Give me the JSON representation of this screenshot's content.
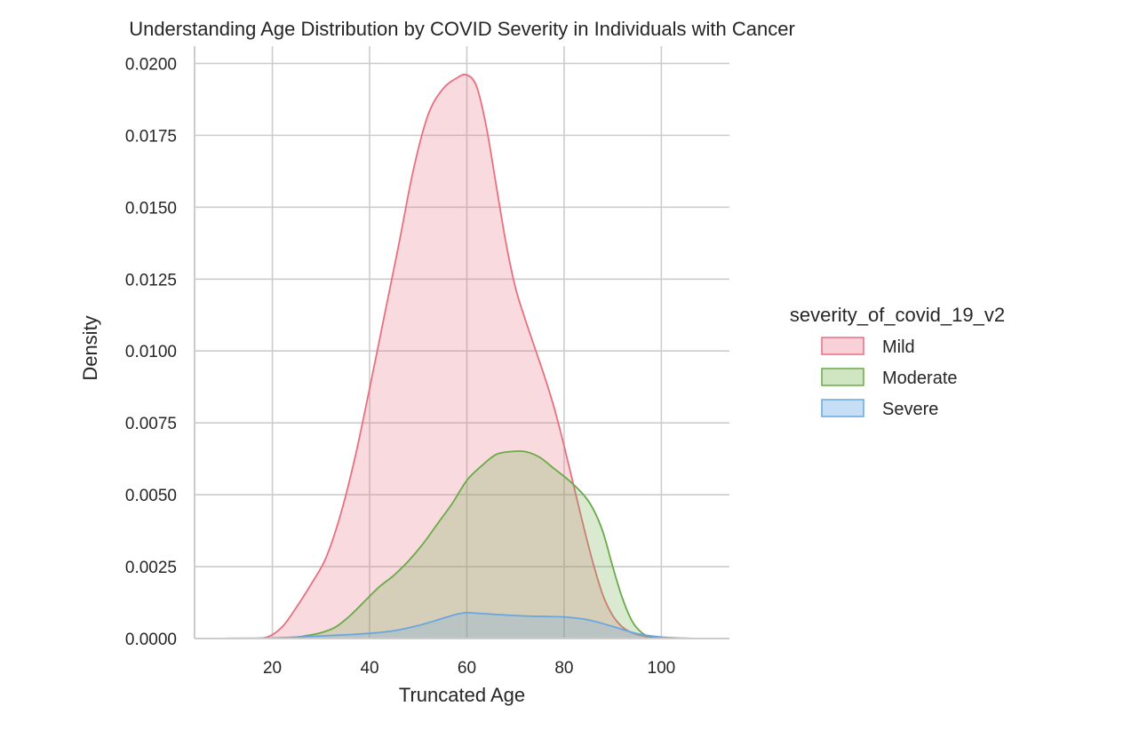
{
  "chart_data": {
    "type": "area",
    "title": "Understanding Age Distribution by COVID Severity in Individuals with Cancer",
    "xlabel": "Truncated Age",
    "ylabel": "Density",
    "xlim": [
      4,
      114
    ],
    "ylim": [
      0,
      0.0206
    ],
    "xticks": [
      20,
      40,
      60,
      80,
      100
    ],
    "xtick_labels": [
      "20",
      "40",
      "60",
      "80",
      "100"
    ],
    "yticks": [
      0,
      0.0025,
      0.005,
      0.0075,
      0.01,
      0.0125,
      0.015,
      0.0175,
      0.02
    ],
    "ytick_labels": [
      "0.0000",
      "0.0025",
      "0.0050",
      "0.0075",
      "0.0100",
      "0.0125",
      "0.0150",
      "0.0175",
      "0.0200"
    ],
    "grid": true,
    "legend": {
      "title": "severity_of_covid_19_v2",
      "position": "right"
    },
    "series": [
      {
        "name": "Mild",
        "color": "#e8707f",
        "fill": "#f7d0d8",
        "x": [
          5,
          12,
          16,
          19,
          22,
          25,
          28,
          31,
          34,
          37,
          40,
          43,
          46,
          49,
          52,
          55,
          58,
          60,
          62,
          64,
          66,
          68,
          70,
          72,
          74,
          76,
          78,
          80,
          82,
          84,
          86,
          88,
          90,
          92,
          94,
          96,
          98,
          100,
          105,
          110
        ],
        "y": [
          0,
          0,
          0,
          5e-05,
          0.0004,
          0.0011,
          0.0019,
          0.0028,
          0.0043,
          0.0063,
          0.0087,
          0.0112,
          0.0137,
          0.0163,
          0.0182,
          0.0191,
          0.0195,
          0.0196,
          0.0192,
          0.0178,
          0.0158,
          0.0138,
          0.0122,
          0.0111,
          0.0101,
          0.0091,
          0.008,
          0.0067,
          0.0053,
          0.0039,
          0.0026,
          0.0015,
          0.0008,
          0.0004,
          0.0002,
          0.0001,
          3e-05,
          0,
          0,
          0
        ]
      },
      {
        "name": "Moderate",
        "color": "#6aaa48",
        "fill": "#d0e6c2",
        "x": [
          5,
          20,
          24,
          27,
          30,
          33,
          36,
          39,
          42,
          45,
          48,
          51,
          54,
          57,
          60,
          63,
          66,
          69,
          72,
          75,
          78,
          81,
          84,
          86,
          88,
          90,
          92,
          94,
          96,
          98,
          100,
          103,
          110
        ],
        "y": [
          0,
          0,
          3e-05,
          0.0001,
          0.0002,
          0.0004,
          0.0008,
          0.0013,
          0.0018,
          0.0022,
          0.0027,
          0.0033,
          0.004,
          0.0047,
          0.0055,
          0.006,
          0.0064,
          0.0065,
          0.0065,
          0.0063,
          0.0059,
          0.0055,
          0.005,
          0.0045,
          0.0037,
          0.0025,
          0.0014,
          0.0006,
          0.0002,
          5e-05,
          1e-05,
          0,
          0
        ]
      },
      {
        "name": "Severe",
        "color": "#6aa5e0",
        "fill": "#c7dff5",
        "x": [
          5,
          15,
          20,
          25,
          30,
          35,
          40,
          45,
          50,
          55,
          58,
          60,
          62,
          65,
          70,
          75,
          80,
          85,
          90,
          95,
          100,
          105,
          110
        ],
        "y": [
          0,
          1e-05,
          2e-05,
          5e-05,
          9e-05,
          0.00013,
          0.00018,
          0.00027,
          0.00045,
          0.0007,
          0.00085,
          0.0009,
          0.00088,
          0.00085,
          0.0008,
          0.00077,
          0.00075,
          0.00065,
          0.00042,
          0.00017,
          5e-05,
          1e-05,
          0
        ]
      }
    ]
  }
}
